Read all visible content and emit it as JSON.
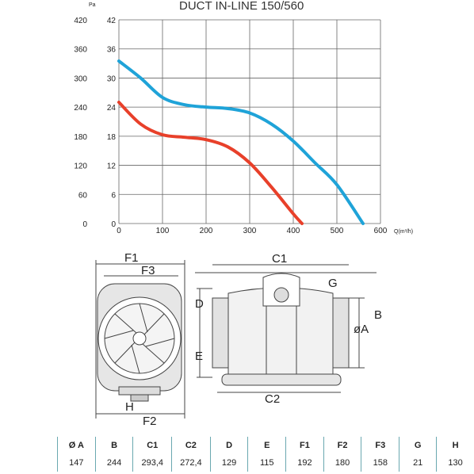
{
  "chart_data": {
    "type": "line",
    "title": "DUCT IN-LINE 150/560",
    "xlabel": "Q(m³/h)",
    "ylabel": "Pa",
    "xlim": [
      0,
      600
    ],
    "ylim_pa": [
      0,
      420
    ],
    "ylim_mm": [
      0,
      42
    ],
    "x_ticks": [
      "0",
      "100",
      "200",
      "300",
      "400",
      "500",
      "600"
    ],
    "y_ticks_left": [
      "0",
      "60",
      "120",
      "180",
      "240",
      "300",
      "360",
      "420"
    ],
    "y_ticks_right": [
      "0",
      "6",
      "12",
      "18",
      "24",
      "30",
      "36",
      "42"
    ],
    "grid": true,
    "series": [
      {
        "color": "#1fa3d8",
        "x": [
          0,
          50,
          100,
          150,
          200,
          250,
          300,
          350,
          400,
          450,
          500,
          560
        ],
        "y": [
          335,
          300,
          260,
          245,
          240,
          237,
          228,
          205,
          170,
          125,
          80,
          0
        ]
      },
      {
        "color": "#e8402a",
        "x": [
          0,
          50,
          100,
          150,
          200,
          250,
          300,
          350,
          400,
          420
        ],
        "y": [
          250,
          205,
          183,
          178,
          173,
          158,
          125,
          75,
          20,
          0
        ]
      }
    ]
  },
  "drawing": {
    "labels": {
      "F1": "F1",
      "F3": "F3",
      "H": "H",
      "F2": "F2",
      "C1": "C1",
      "C2": "C2",
      "D": "D",
      "E": "E",
      "G": "G",
      "A": "øA",
      "B": "B"
    }
  },
  "specs": {
    "headers": [
      "Ø A",
      "B",
      "C1",
      "C2",
      "D",
      "E",
      "F1",
      "F2",
      "F3",
      "G",
      "H"
    ],
    "values": [
      "147",
      "244",
      "293,4",
      "272,4",
      "129",
      "115",
      "192",
      "180",
      "158",
      "21",
      "130"
    ]
  }
}
